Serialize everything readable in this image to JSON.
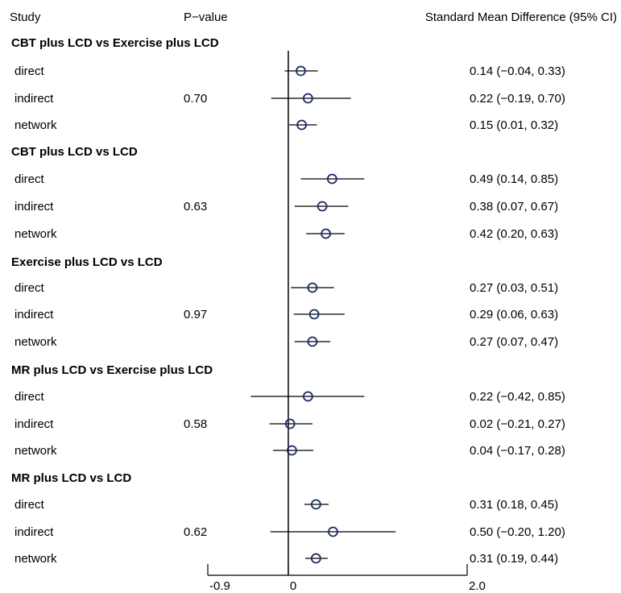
{
  "chart_data": {
    "type": "forest",
    "headers": {
      "study": "Study",
      "pvalue": "P−value",
      "effect": "Standard Mean Difference (95% CI)"
    },
    "axis": {
      "ticks": [
        {
          "value": -0.9,
          "label": "-0.9"
        },
        {
          "value": 0,
          "label": "0"
        },
        {
          "value": 2.0,
          "label": "2.0"
        }
      ],
      "xlim": [
        -0.9,
        2.0
      ],
      "reference_line": 0
    },
    "groups": [
      {
        "title": "CBT plus LCD vs Exercise plus LCD",
        "pvalue": "0.70",
        "rows": [
          {
            "label": "direct",
            "est": 0.14,
            "lo": -0.04,
            "hi": 0.33,
            "text": "0.14 (−0.04, 0.33)"
          },
          {
            "label": "indirect",
            "est": 0.22,
            "lo": -0.19,
            "hi": 0.7,
            "text": "0.22 (−0.19, 0.70)"
          },
          {
            "label": "network",
            "est": 0.15,
            "lo": 0.01,
            "hi": 0.32,
            "text": "0.15 (0.01, 0.32)"
          }
        ]
      },
      {
        "title": "CBT plus LCD vs LCD",
        "pvalue": "0.63",
        "rows": [
          {
            "label": "direct",
            "est": 0.49,
            "lo": 0.14,
            "hi": 0.85,
            "text": "0.49 (0.14, 0.85)"
          },
          {
            "label": "indirect",
            "est": 0.38,
            "lo": 0.07,
            "hi": 0.67,
            "text": "0.38 (0.07, 0.67)"
          },
          {
            "label": "network",
            "est": 0.42,
            "lo": 0.2,
            "hi": 0.63,
            "text": "0.42 (0.20, 0.63)"
          }
        ]
      },
      {
        "title": "Exercise plus LCD vs LCD",
        "pvalue": "0.97",
        "rows": [
          {
            "label": "direct",
            "est": 0.27,
            "lo": 0.03,
            "hi": 0.51,
            "text": "0.27 (0.03, 0.51)"
          },
          {
            "label": "indirect",
            "est": 0.29,
            "lo": 0.06,
            "hi": 0.63,
            "text": "0.29 (0.06, 0.63)"
          },
          {
            "label": "network",
            "est": 0.27,
            "lo": 0.07,
            "hi": 0.47,
            "text": "0.27 (0.07, 0.47)"
          }
        ]
      },
      {
        "title": "MR plus LCD vs Exercise plus LCD",
        "pvalue": "0.58",
        "rows": [
          {
            "label": "direct",
            "est": 0.22,
            "lo": -0.42,
            "hi": 0.85,
            "text": "0.22 (−0.42, 0.85)"
          },
          {
            "label": "indirect",
            "est": 0.02,
            "lo": -0.21,
            "hi": 0.27,
            "text": "0.02 (−0.21, 0.27)"
          },
          {
            "label": "network",
            "est": 0.04,
            "lo": -0.17,
            "hi": 0.28,
            "text": "0.04 (−0.17, 0.28)"
          }
        ]
      },
      {
        "title": "MR plus LCD vs LCD",
        "pvalue": "0.62",
        "rows": [
          {
            "label": "direct",
            "est": 0.31,
            "lo": 0.18,
            "hi": 0.45,
            "text": "0.31 (0.18, 0.45)"
          },
          {
            "label": "indirect",
            "est": 0.5,
            "lo": -0.2,
            "hi": 1.2,
            "text": "0.50 (−0.20, 1.20)"
          },
          {
            "label": "network",
            "est": 0.31,
            "lo": 0.19,
            "hi": 0.44,
            "text": "0.31 (0.19, 0.44)"
          }
        ]
      }
    ]
  }
}
